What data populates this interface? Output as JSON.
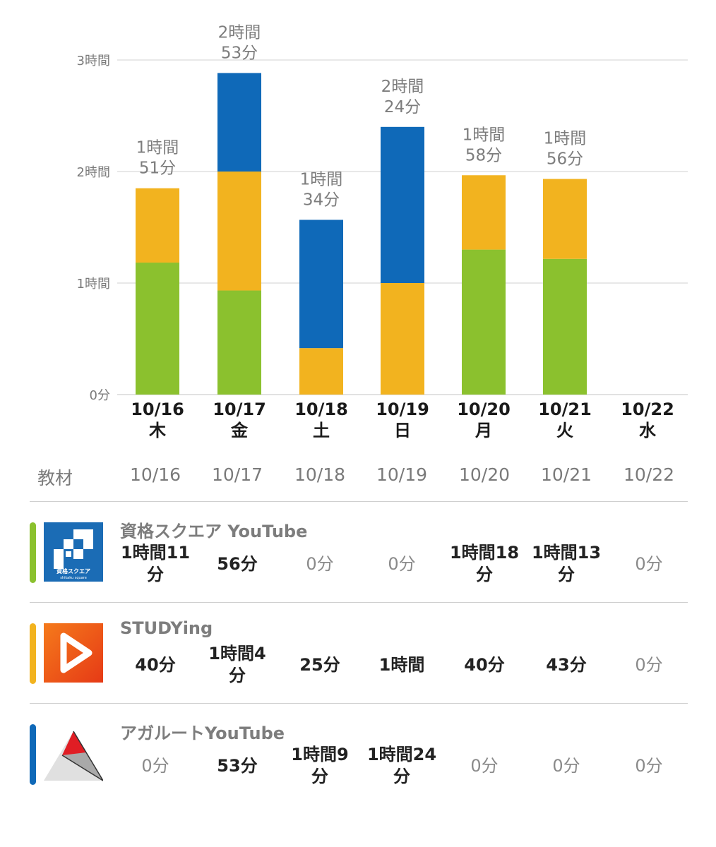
{
  "colors": {
    "green": "#8bc12e",
    "yellow": "#f2b31f",
    "blue": "#0f69b8",
    "grid": "#d9d9d9",
    "axis_text": "#7a7a7a",
    "total_text": "#7d7d7d",
    "date_text": "#1a1a1a"
  },
  "chart_data": {
    "type": "bar",
    "stacked": true,
    "categories": [
      "10/16",
      "10/17",
      "10/18",
      "10/19",
      "10/20",
      "10/21",
      "10/22"
    ],
    "weekdays": [
      "木",
      "金",
      "土",
      "日",
      "月",
      "火",
      "水"
    ],
    "yticks": [
      {
        "value": 0,
        "label": "0分"
      },
      {
        "value": 60,
        "label": "1時間"
      },
      {
        "value": 120,
        "label": "2時間"
      },
      {
        "value": 180,
        "label": "3時間"
      }
    ],
    "ylim": [
      0,
      180
    ],
    "grid": true,
    "series": [
      {
        "color": "green",
        "values": [
          71,
          56,
          0,
          0,
          78,
          73,
          0
        ]
      },
      {
        "color": "yellow",
        "values": [
          40,
          64,
          25,
          60,
          40,
          43,
          0
        ]
      },
      {
        "color": "blue",
        "values": [
          0,
          53,
          69,
          84,
          0,
          0,
          0
        ]
      }
    ],
    "totals": [
      [
        "1時間",
        "51分"
      ],
      [
        "2時間",
        "53分"
      ],
      [
        "1時間",
        "34分"
      ],
      [
        "2時間",
        "24分"
      ],
      [
        "1時間",
        "58分"
      ],
      [
        "1時間",
        "56分"
      ],
      null
    ]
  },
  "table": {
    "header_label": "教材",
    "dates": [
      "10/16",
      "10/17",
      "10/18",
      "10/19",
      "10/20",
      "10/21",
      "10/22"
    ],
    "rows": [
      {
        "name": "資格スクエア YouTube",
        "color": "green",
        "logo": "shikaku-square-logo",
        "logo_text": "資格スクエア",
        "logo_subtext": "shikaku square",
        "values": [
          [
            "1時間11",
            "分"
          ],
          [
            "56分"
          ],
          [
            "0分"
          ],
          [
            "0分"
          ],
          [
            "1時間18",
            "分"
          ],
          [
            "1時間13",
            "分"
          ],
          [
            "0分"
          ]
        ]
      },
      {
        "name": "STUDYing",
        "color": "yellow",
        "logo": "studying-play-logo",
        "values": [
          [
            "40分"
          ],
          [
            "1時間4",
            "分"
          ],
          [
            "25分"
          ],
          [
            "1時間"
          ],
          [
            "40分"
          ],
          [
            "43分"
          ],
          [
            "0分"
          ]
        ]
      },
      {
        "name": "アガルートYouTube",
        "color": "blue",
        "logo": "agaroot-triangle-logo",
        "values": [
          [
            "0分"
          ],
          [
            "53分"
          ],
          [
            "1時間9",
            "分"
          ],
          [
            "1時間24",
            "分"
          ],
          [
            "0分"
          ],
          [
            "0分"
          ],
          [
            "0分"
          ]
        ]
      }
    ]
  }
}
